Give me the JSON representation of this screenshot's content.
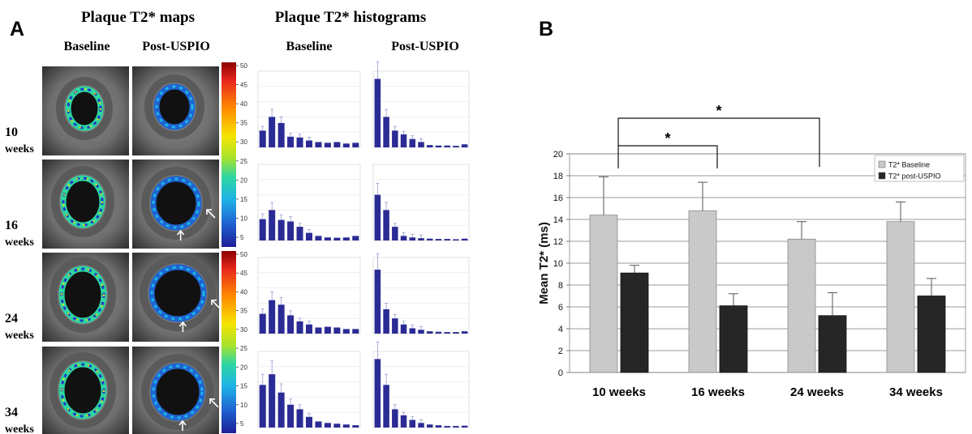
{
  "panel_a": {
    "label": "A",
    "maps_header": "Plaque T2* maps",
    "histograms_header": "Plaque T2* histograms",
    "column_labels": {
      "maps_baseline": "Baseline",
      "maps_post": "Post-USPIO",
      "hist_baseline": "Baseline",
      "hist_post": "Post-USPIO"
    },
    "rows": [
      {
        "num": "10",
        "unit": "weeks"
      },
      {
        "num": "16",
        "unit": "weeks"
      },
      {
        "num": "24",
        "unit": "weeks"
      },
      {
        "num": "34",
        "unit": "weeks"
      }
    ],
    "colorbar_ticks": [
      "50",
      "45",
      "40",
      "35",
      "30",
      "25",
      "20",
      "15",
      "10",
      "5"
    ],
    "colorbar_colors": [
      "#8b0000",
      "#e8281e",
      "#ff8c00",
      "#f5e400",
      "#a6e22e",
      "#2ed6a0",
      "#1eb4e6",
      "#1e64d2",
      "#1e1e96"
    ],
    "histograms": [
      {
        "baseline": [
          11,
          20,
          16,
          7,
          6.5,
          4.5,
          3.5,
          3,
          3.5,
          2.5,
          3
        ],
        "post": [
          45,
          20,
          11,
          8.5,
          5.5,
          3.5,
          1.5,
          1.2,
          1.2,
          1,
          2
        ]
      },
      {
        "baseline": [
          14,
          20,
          13.5,
          12.5,
          9,
          5,
          3,
          2,
          1.8,
          2,
          3
        ],
        "post": [
          30,
          20,
          9,
          3,
          2,
          1.5,
          1.2,
          1,
          1,
          0.8,
          1.2
        ]
      },
      {
        "baseline": [
          13,
          22,
          19,
          12,
          8,
          6,
          4,
          4.5,
          4,
          3,
          3
        ],
        "post": [
          42,
          16,
          10,
          6,
          3.5,
          2.5,
          1.5,
          1.2,
          1,
          1,
          1.5
        ]
      },
      {
        "baseline": [
          28,
          35,
          23,
          15,
          12,
          7,
          4,
          3,
          2.5,
          2,
          1.5
        ],
        "post": [
          45,
          28,
          12,
          8,
          5,
          3,
          2,
          1.5,
          1,
          1,
          1.2
        ]
      }
    ]
  },
  "panel_b": {
    "label": "B",
    "significance_marks": [
      "*",
      "*"
    ]
  },
  "chart_data": {
    "type": "bar",
    "categories": [
      "10 weeks",
      "16 weeks",
      "24 weeks",
      "34 weeks"
    ],
    "ylabel": "Mean T2* (ms)",
    "ylim": [
      0,
      20
    ],
    "yticks": [
      "0",
      "2",
      "4",
      "6",
      "8",
      "10",
      "12",
      "14",
      "16",
      "18",
      "20"
    ],
    "grid": true,
    "legend_position": "top-right",
    "series": [
      {
        "name": "T2* Baseline",
        "values": [
          14.4,
          14.8,
          12.2,
          13.8
        ],
        "errors": [
          3.5,
          2.6,
          1.6,
          1.8
        ],
        "color": "#c8c8c8"
      },
      {
        "name": "T2* post-USPIO",
        "values": [
          9.1,
          6.1,
          5.2,
          7.0
        ],
        "errors": [
          0.7,
          1.1,
          2.1,
          1.6
        ],
        "color": "#262626"
      }
    ]
  }
}
